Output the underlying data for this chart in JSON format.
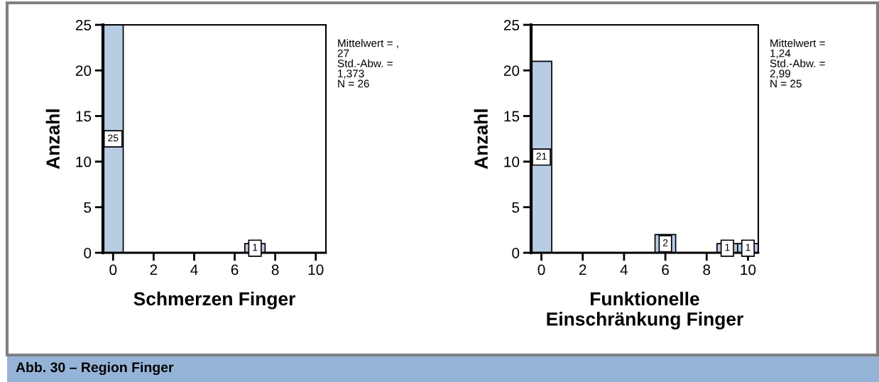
{
  "chart_data": [
    {
      "type": "histogram",
      "xlabel": "Schmerzen Finger",
      "ylabel": "Anzahl",
      "color": "#b8cce4",
      "bins": [
        -0.5,
        0.5,
        1.5,
        2.5,
        3.5,
        4.5,
        5.5,
        6.5,
        7.5,
        8.5,
        9.5,
        10.5
      ],
      "values": [
        25,
        0,
        0,
        0,
        0,
        0,
        0,
        1,
        0,
        0,
        0
      ],
      "value_labels": [
        "25",
        null,
        null,
        null,
        null,
        null,
        null,
        "1",
        null,
        null,
        null
      ],
      "xlim": [
        -0.5,
        10.5
      ],
      "xticks": [
        0,
        2,
        4,
        6,
        8,
        10
      ],
      "ylim": [
        0,
        25
      ],
      "yticks": [
        0,
        5,
        10,
        15,
        20,
        25
      ],
      "grid": false,
      "annotations": [
        "Mittelwert = ,\n27\nStd.-Abw. =\n1,373\nN = 26",
        "Abb. 30 – Region Finger"
      ]
    },
    {
      "type": "histogram",
      "xlabel": "Funktionelle\nEinschränkung Finger",
      "ylabel": "Anzahl",
      "color": "#b8cce4",
      "bins": [
        -0.5,
        0.5,
        1.5,
        2.5,
        3.5,
        4.5,
        5.5,
        6.5,
        7.5,
        8.5,
        9.5,
        10.5
      ],
      "values": [
        21,
        0,
        0,
        0,
        0,
        0,
        2,
        0,
        0,
        1,
        1
      ],
      "value_labels": [
        "21",
        null,
        null,
        null,
        null,
        null,
        "2",
        null,
        null,
        "1",
        "1"
      ],
      "xlim": [
        -0.5,
        10.5
      ],
      "xticks": [
        0,
        2,
        4,
        6,
        8,
        10
      ],
      "ylim": [
        0,
        25
      ],
      "yticks": [
        0,
        5,
        10,
        15,
        20,
        25
      ],
      "grid": false,
      "annotations": [
        "Mittelwert =\n1,24\nStd.-Abw. =\n2,99\nN = 25"
      ]
    }
  ]
}
